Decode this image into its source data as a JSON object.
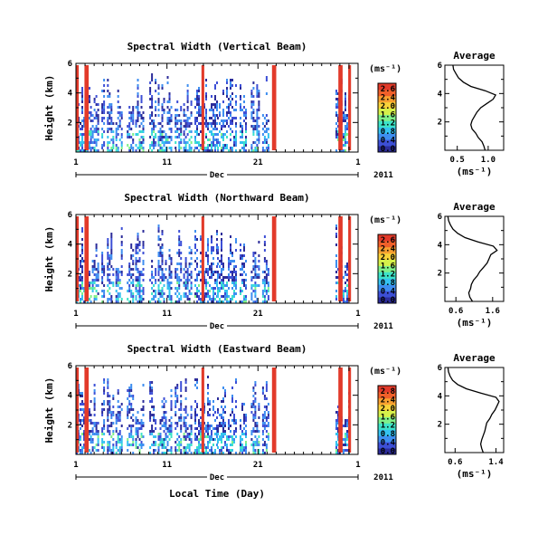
{
  "figure": {
    "x_axis_label": "Local Time (Day)",
    "month_label": "Dec",
    "year_label": "2011",
    "height_axis_label": "Height (km)",
    "avg_title": "Average",
    "unit_label": "(ms⁻¹)"
  },
  "colorbar": {
    "colors": [
      "#2c2c9a",
      "#3d4fd6",
      "#3e8ef0",
      "#34c3f0",
      "#3de3c8",
      "#7ff08a",
      "#d6f04a",
      "#f7d23a",
      "#f8a030",
      "#f0602a",
      "#e23a2a"
    ]
  },
  "chart_data": [
    {
      "type": "heatmap",
      "title": "Spectral Width (Vertical Beam)",
      "x_ticks": [
        "1",
        "11",
        "21",
        "1"
      ],
      "y_ticks": [
        "6",
        "4",
        "2"
      ],
      "ylim": [
        0,
        6
      ],
      "colorbar_ticks": [
        "2.6",
        "2.4",
        "2.0",
        "1.6",
        "1.2",
        "0.8",
        "0.4",
        "0.0"
      ],
      "avg_profile": {
        "x_ticks": [
          "0.5",
          "1.0"
        ],
        "xlim": [
          0.3,
          1.25
        ],
        "y_ticks": [
          "6",
          "4",
          "2"
        ],
        "heights": [
          0.0,
          0.3,
          0.6,
          0.9,
          1.2,
          1.5,
          1.8,
          2.1,
          2.4,
          2.7,
          3.0,
          3.3,
          3.6,
          3.9,
          4.2,
          4.5,
          4.8,
          5.1,
          5.4,
          5.7,
          6.0
        ],
        "values": [
          0.95,
          0.93,
          0.9,
          0.84,
          0.8,
          0.74,
          0.72,
          0.74,
          0.78,
          0.82,
          0.88,
          0.98,
          1.08,
          1.12,
          0.95,
          0.72,
          0.6,
          0.52,
          0.48,
          0.44,
          0.43
        ]
      }
    },
    {
      "type": "heatmap",
      "title": "Spectral Width (Northward Beam)",
      "x_ticks": [
        "1",
        "11",
        "21",
        "1"
      ],
      "y_ticks": [
        "6",
        "4",
        "2"
      ],
      "ylim": [
        0,
        6
      ],
      "colorbar_ticks": [
        "2.6",
        "2.4",
        "2.0",
        "1.6",
        "1.2",
        "0.8",
        "0.4",
        "0.0"
      ],
      "avg_profile": {
        "x_ticks": [
          "0.6",
          "1.6"
        ],
        "xlim": [
          0.3,
          1.9
        ],
        "y_ticks": [
          "6",
          "4",
          "2"
        ],
        "heights": [
          0.0,
          0.3,
          0.6,
          0.9,
          1.2,
          1.5,
          1.8,
          2.1,
          2.4,
          2.7,
          3.0,
          3.3,
          3.6,
          3.9,
          4.2,
          4.5,
          4.8,
          5.1,
          5.4,
          5.7,
          6.0
        ],
        "values": [
          1.05,
          0.98,
          0.95,
          1.0,
          1.02,
          1.08,
          1.18,
          1.25,
          1.35,
          1.45,
          1.5,
          1.55,
          1.72,
          1.62,
          1.2,
          0.85,
          0.65,
          0.52,
          0.45,
          0.4,
          0.38
        ]
      }
    },
    {
      "type": "heatmap",
      "title": "Spectral Width (Eastward Beam)",
      "x_ticks": [
        "1",
        "11",
        "21",
        "1"
      ],
      "y_ticks": [
        "6",
        "4",
        "2"
      ],
      "ylim": [
        0,
        6
      ],
      "colorbar_ticks": [
        "2.8",
        "2.4",
        "2.0",
        "1.6",
        "1.2",
        "0.8",
        "0.4",
        "0.0"
      ],
      "avg_profile": {
        "x_ticks": [
          "0.6",
          "1.4"
        ],
        "xlim": [
          0.4,
          1.55
        ],
        "y_ticks": [
          "6",
          "4",
          "2"
        ],
        "heights": [
          0.0,
          0.3,
          0.6,
          0.9,
          1.2,
          1.5,
          1.8,
          2.1,
          2.4,
          2.7,
          3.0,
          3.3,
          3.6,
          3.9,
          4.2,
          4.5,
          4.8,
          5.1,
          5.4,
          5.7,
          6.0
        ],
        "values": [
          1.15,
          1.12,
          1.1,
          1.12,
          1.15,
          1.18,
          1.2,
          1.22,
          1.28,
          1.32,
          1.38,
          1.42,
          1.46,
          1.4,
          1.1,
          0.82,
          0.65,
          0.55,
          0.5,
          0.47,
          0.46
        ]
      }
    }
  ]
}
